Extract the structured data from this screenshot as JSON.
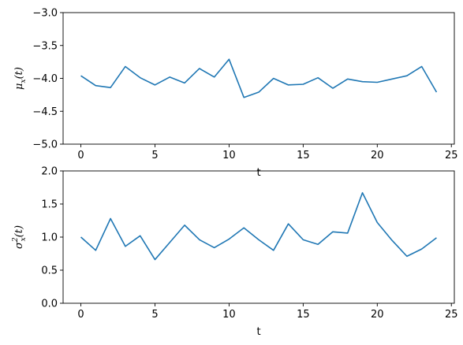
{
  "chart_data": [
    {
      "type": "line",
      "xlabel": "t",
      "ylabel": {
        "main": "μ",
        "sub": "x",
        "suffix": "(t)"
      },
      "xlim": [
        -1.2,
        25.2
      ],
      "ylim": [
        -5.0,
        -3.0
      ],
      "xticks": [
        0,
        5,
        10,
        15,
        20,
        25
      ],
      "xtick_labels": [
        "0",
        "5",
        "10",
        "15",
        "20",
        "25"
      ],
      "yticks": [
        -5.0,
        -4.5,
        -4.0,
        -3.5,
        -3.0
      ],
      "ytick_labels": [
        "−5.0",
        "−4.5",
        "−4.0",
        "−3.5",
        "−3.0"
      ],
      "grid": false,
      "color": "#1f77b4",
      "series": [
        {
          "x": [
            0,
            1,
            2,
            3,
            4,
            5,
            6,
            7,
            8,
            9,
            10,
            11,
            12,
            13,
            14,
            15,
            16,
            17,
            18,
            19,
            20,
            21,
            22,
            23,
            24
          ],
          "values": [
            -3.96,
            -4.11,
            -4.14,
            -3.82,
            -3.99,
            -4.1,
            -3.98,
            -4.07,
            -3.85,
            -3.98,
            -3.71,
            -4.29,
            -4.21,
            -4.0,
            -4.1,
            -4.09,
            -3.99,
            -4.15,
            -4.01,
            -4.05,
            -4.06,
            -4.01,
            -3.96,
            -3.82,
            -4.21
          ]
        }
      ]
    },
    {
      "type": "line",
      "xlabel": "t",
      "ylabel": {
        "main": "σ",
        "sup": "2",
        "sub": "x",
        "suffix": "(t)"
      },
      "xlim": [
        -1.2,
        25.2
      ],
      "ylim": [
        0.0,
        2.0
      ],
      "xticks": [
        0,
        5,
        10,
        15,
        20,
        25
      ],
      "xtick_labels": [
        "0",
        "5",
        "10",
        "15",
        "20",
        "25"
      ],
      "yticks": [
        0.0,
        0.5,
        1.0,
        1.5,
        2.0
      ],
      "ytick_labels": [
        "0.0",
        "0.5",
        "1.0",
        "1.5",
        "2.0"
      ],
      "grid": false,
      "color": "#1f77b4",
      "series": [
        {
          "x": [
            0,
            1,
            2,
            3,
            4,
            5,
            6,
            7,
            8,
            9,
            10,
            11,
            12,
            13,
            14,
            15,
            16,
            17,
            18,
            19,
            20,
            21,
            22,
            23,
            24
          ],
          "values": [
            1.0,
            0.8,
            1.28,
            0.86,
            1.02,
            0.66,
            0.92,
            1.18,
            0.96,
            0.84,
            0.97,
            1.14,
            0.96,
            0.8,
            1.2,
            0.96,
            0.89,
            1.08,
            1.06,
            1.67,
            1.22,
            0.95,
            0.71,
            0.82,
            0.99
          ]
        }
      ]
    }
  ]
}
